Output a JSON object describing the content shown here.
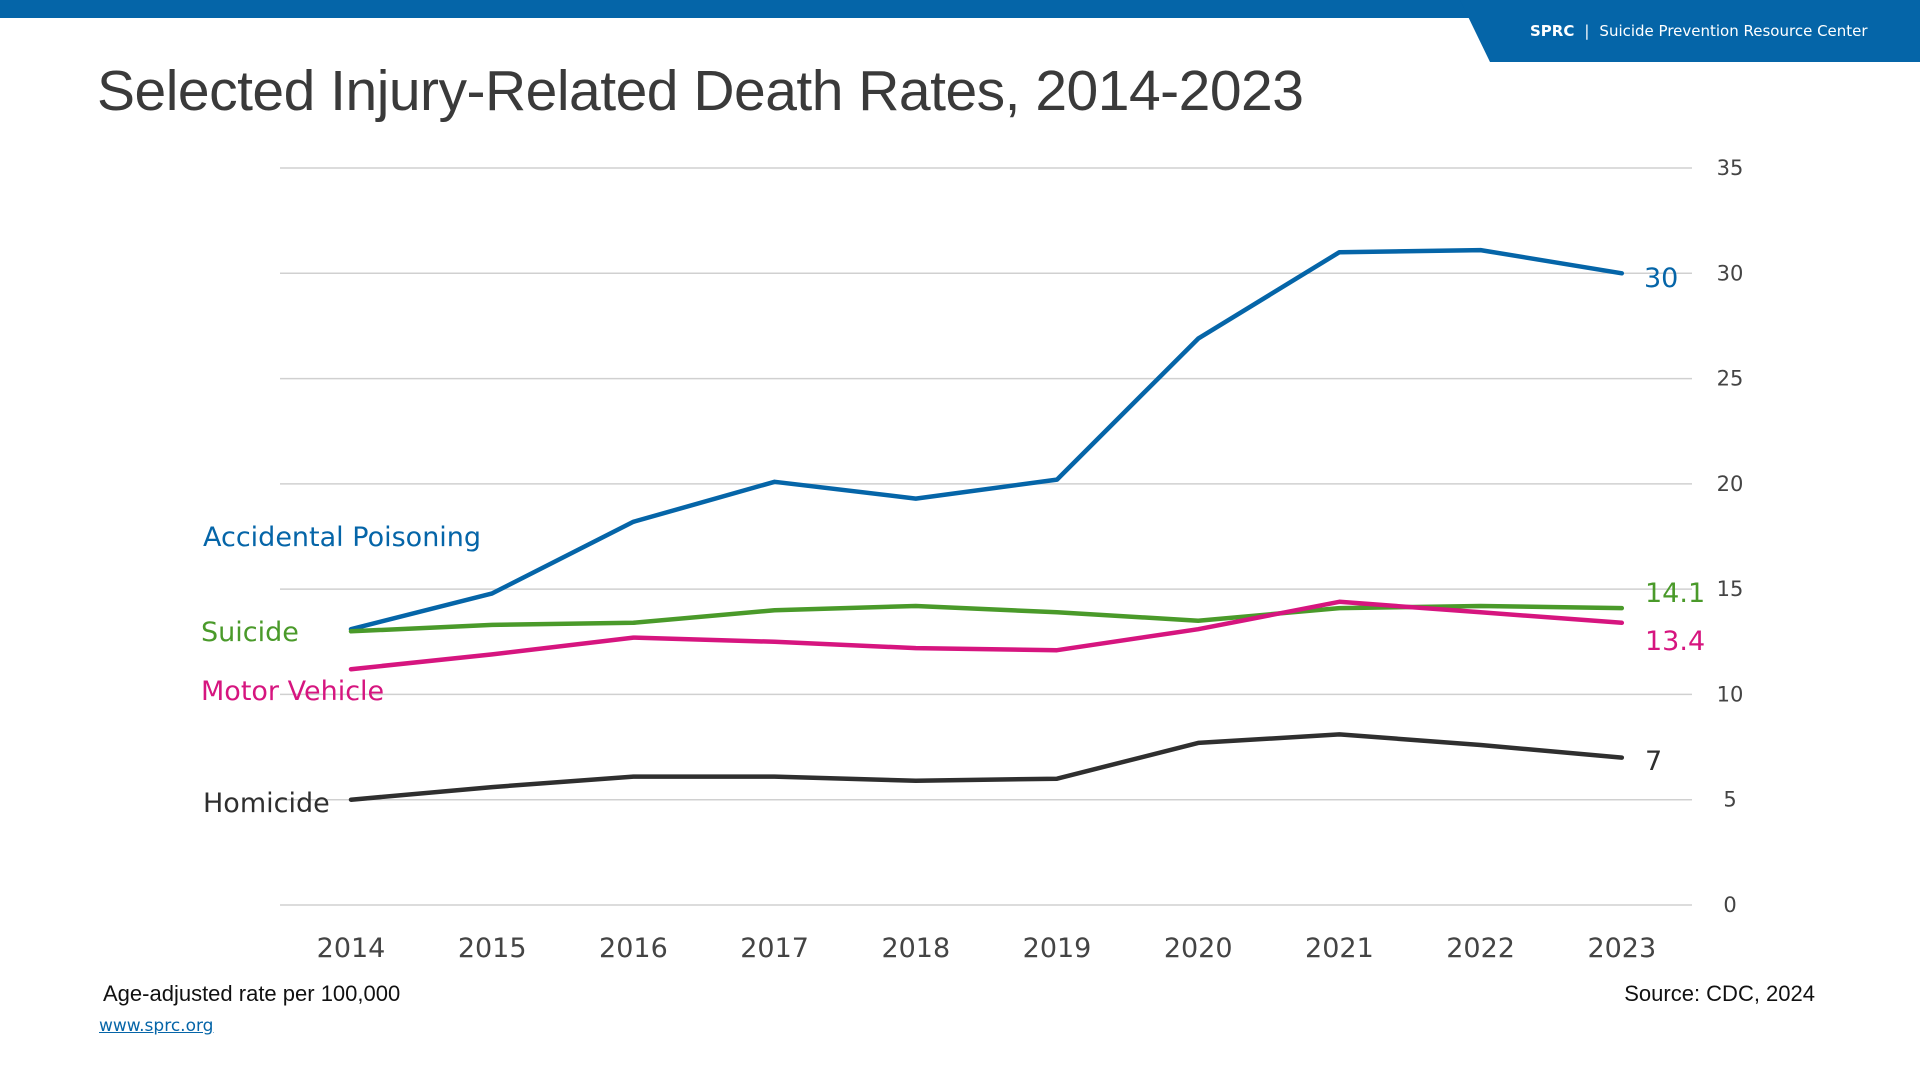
{
  "header": {
    "org_abbr": "SPRC",
    "separator": "|",
    "org_name": "Suicide Prevention Resource Center",
    "brand_color": "#0565a8"
  },
  "title": "Selected Injury-Related Death Rates, 2014-2023",
  "footer": {
    "note": "Age-adjusted rate per 100,000",
    "source": "Source: CDC, 2024",
    "link": "www.sprc.org"
  },
  "chart_data": {
    "type": "line",
    "x": [
      "2014",
      "2015",
      "2016",
      "2017",
      "2018",
      "2019",
      "2020",
      "2021",
      "2022",
      "2023"
    ],
    "ylim": [
      0,
      35
    ],
    "yticks": [
      "0",
      "5",
      "10",
      "15",
      "20",
      "25",
      "30",
      "35"
    ],
    "y_axis_side": "right",
    "grid": true,
    "legend": "inline labels at left of lines",
    "series": [
      {
        "name": "Accidental Poisoning",
        "color": "#0565a8",
        "values": [
          13.1,
          14.8,
          18.2,
          20.1,
          19.3,
          20.2,
          26.9,
          31.0,
          31.1,
          30.0
        ],
        "end_label": "30"
      },
      {
        "name": "Suicide",
        "color": "#4a9a2a",
        "values": [
          13.0,
          13.3,
          13.4,
          14.0,
          14.2,
          13.9,
          13.5,
          14.1,
          14.2,
          14.1
        ],
        "end_label": "14.1"
      },
      {
        "name": "Motor Vehicle",
        "color": "#d6157f",
        "values": [
          11.2,
          11.9,
          12.7,
          12.5,
          12.2,
          12.1,
          13.1,
          14.4,
          13.9,
          13.4
        ],
        "end_label": "13.4"
      },
      {
        "name": "Homicide",
        "color": "#2f2f2f",
        "values": [
          5.0,
          5.6,
          6.1,
          6.1,
          5.9,
          6.0,
          7.7,
          8.1,
          7.6,
          7.0
        ],
        "end_label": "7"
      }
    ]
  }
}
